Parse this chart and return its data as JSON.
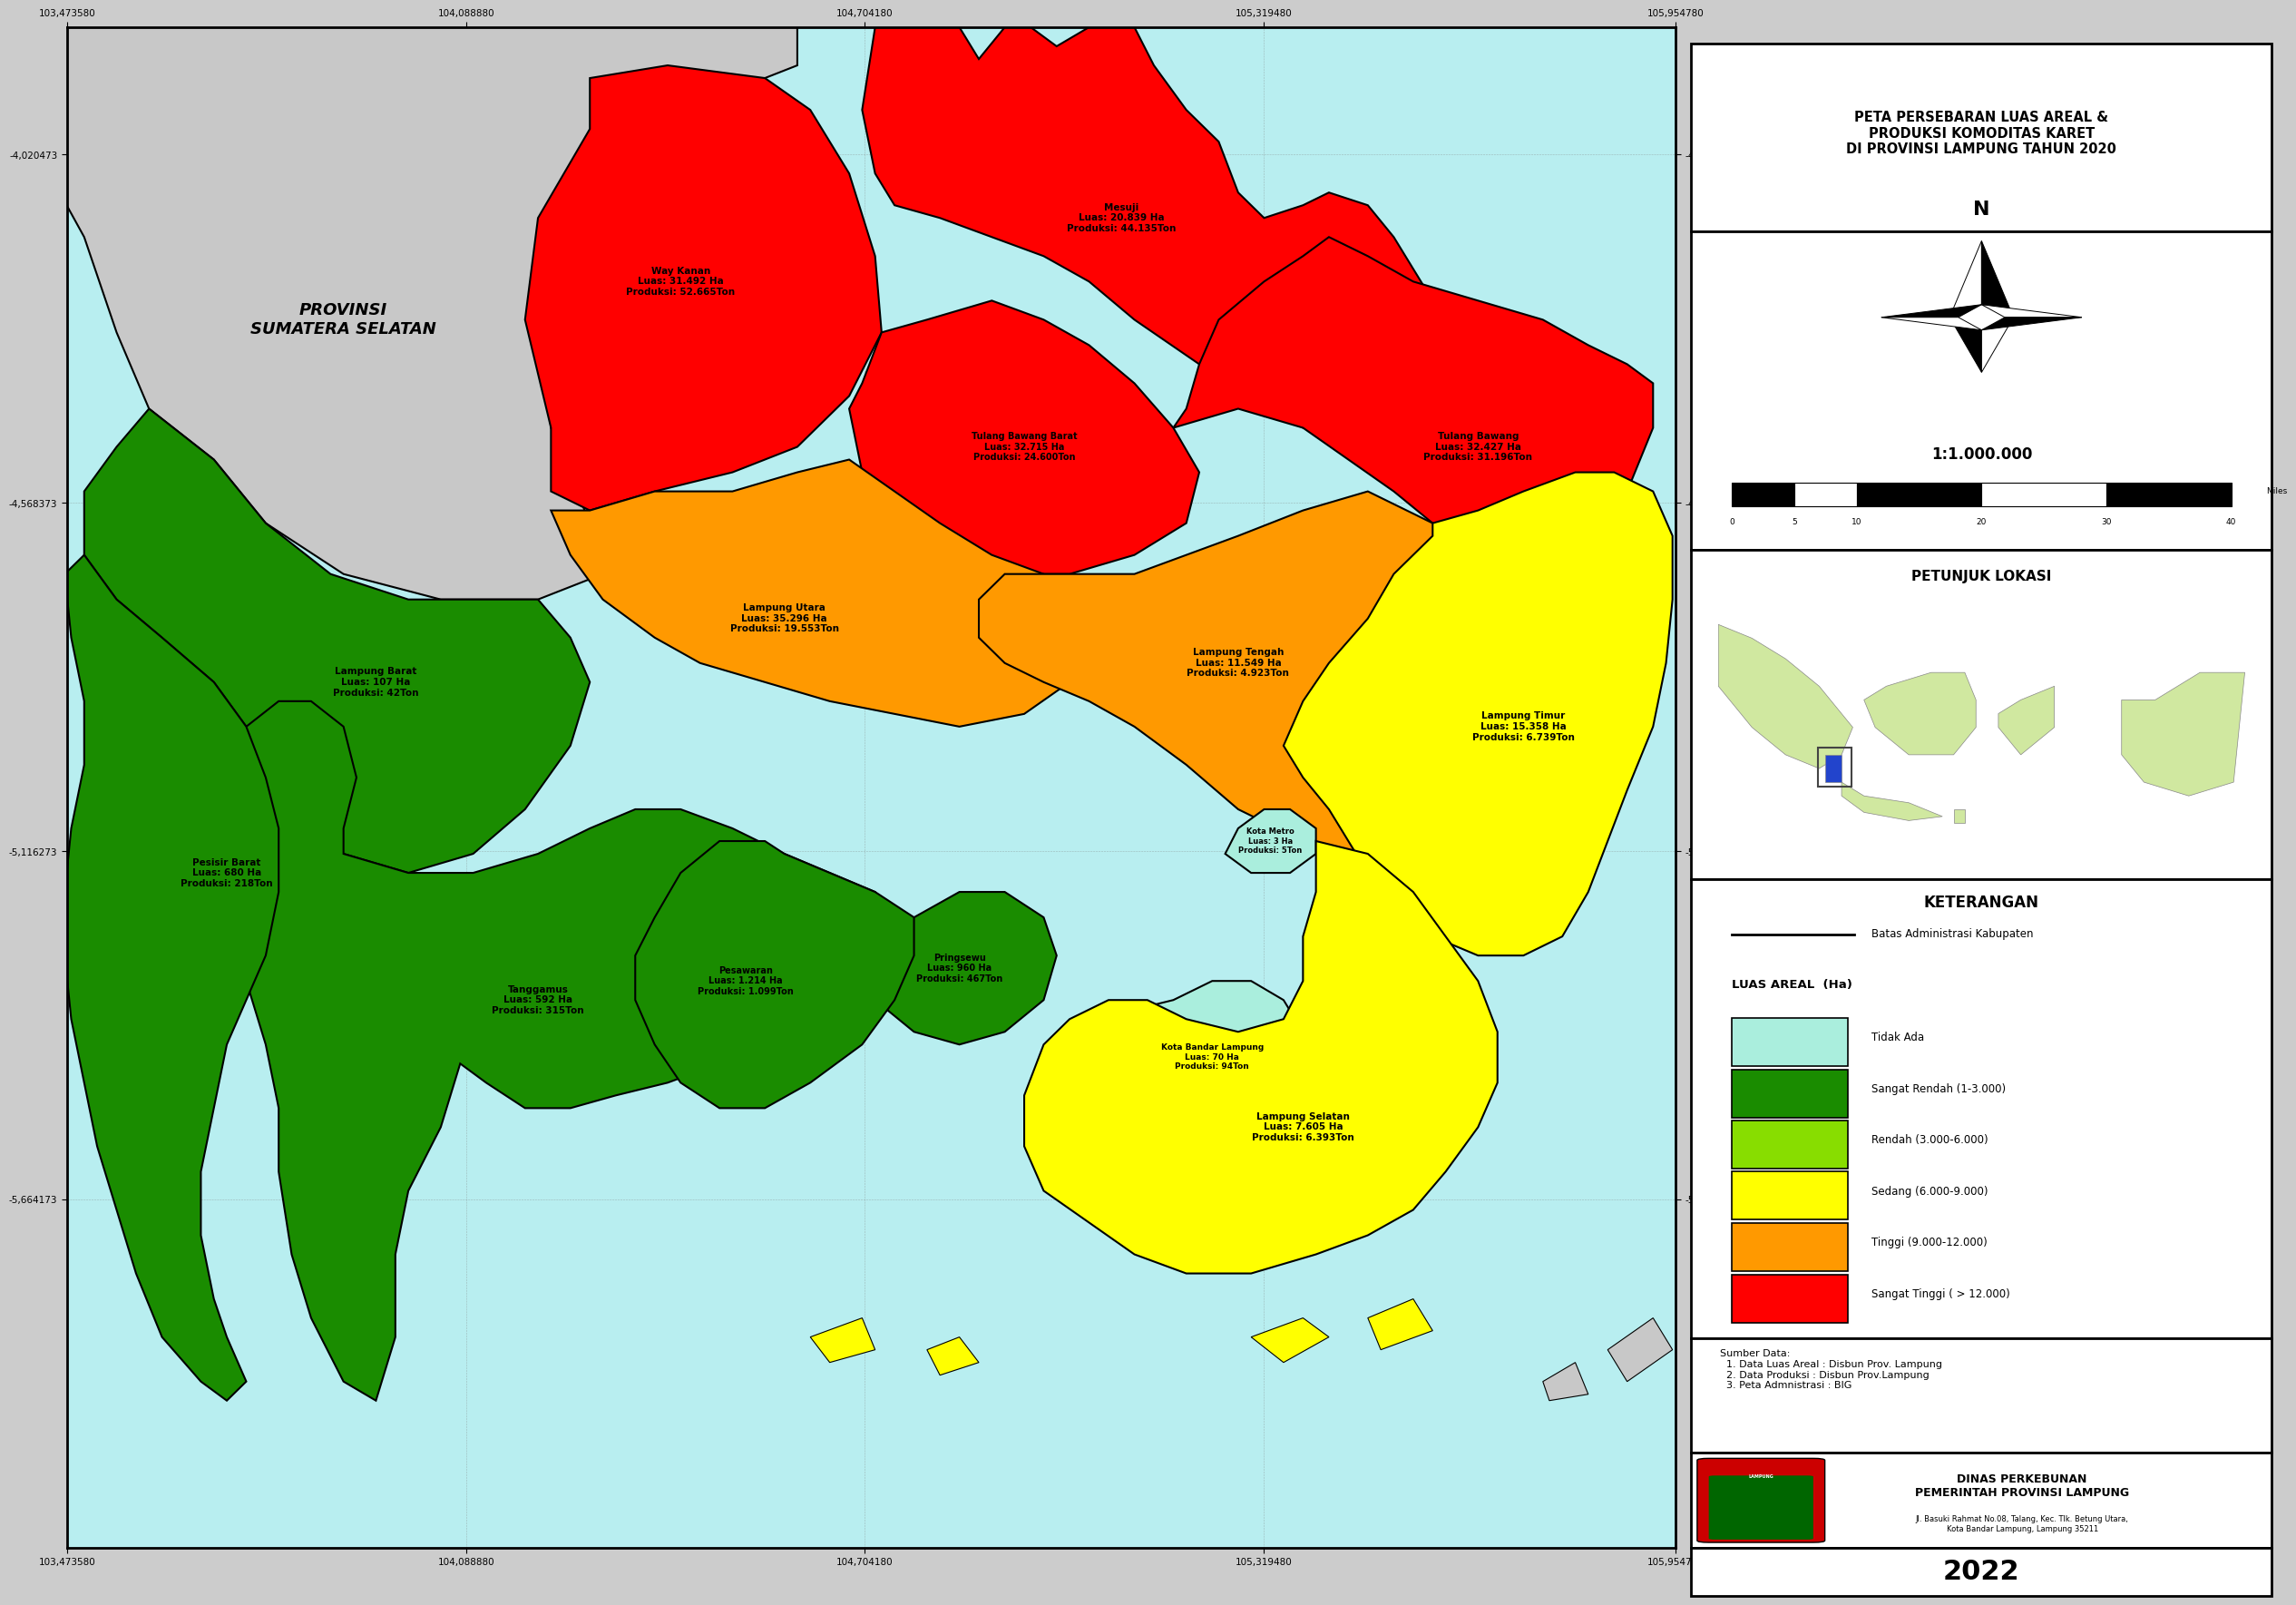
{
  "title": "PETA PERSEBARAN LUAS AREAL &\nPRODUKSI KOMODITAS KARET\nDI PROVINSI LAMPUNG TAHUN 2020",
  "scale_text": "1:1.000.000",
  "north_arrow_label": "N",
  "petunjuk_lokasi_title": "PETUNJUK LOKASI",
  "keterangan_title": "KETERANGAN",
  "batas_label": "Batas Administrasi Kabupaten",
  "luas_areal_label": "LUAS AREAL  (Ha)",
  "legend_items": [
    {
      "color": "#aaeedd",
      "label": "Tidak Ada"
    },
    {
      "color": "#1a8c00",
      "label": "Sangat Rendah (1-3.000)"
    },
    {
      "color": "#88dd00",
      "label": "Rendah (3.000-6.000)"
    },
    {
      "color": "#ffff00",
      "label": "Sedang (6.000-9.000)"
    },
    {
      "color": "#ff9900",
      "label": "Tinggi (9.000-12.000)"
    },
    {
      "color": "#ff0000",
      "label": "Sangat Tinggi ( > 12.000)"
    }
  ],
  "sumber_data": [
    "Sumber Data:",
    "  1. Data Luas Areal : Disbun Prov. Lampung",
    "  2. Data Produksi : Disbun Prov.Lampung",
    "  3. Peta Admnistrasi : BIG"
  ],
  "year_text": "2022",
  "dinas_name": "DINAS PERKEBUNAN\nPEMERINTAH PROVINSI LAMPUNG",
  "dinas_address": "Jl. Basuki Rahmat No.08, Talang, Kec. Tlk. Betung Utara,\nKota Bandar Lampung, Lampung 35211",
  "map_bg_color": "#b8eef0",
  "sumatera_selatan_label": "PROVINSI\nSUMATERA SELATAN",
  "map_xlim": [
    103.47358,
    105.95478
  ],
  "map_ylim": [
    -6.212073,
    -3.820473
  ],
  "xticks": [
    103.47358,
    104.08888,
    104.70418,
    105.31948,
    105.95478
  ],
  "yticks": [
    -4.020473,
    -4.568373,
    -5.116273,
    -5.664173
  ],
  "xticklabels": [
    "103,473580",
    "104,088880",
    "104,704180",
    "105,319480",
    "105,954780"
  ],
  "yticklabels": [
    "-4,020473",
    "-4,568373",
    "-5,116273",
    "-5,664173"
  ]
}
